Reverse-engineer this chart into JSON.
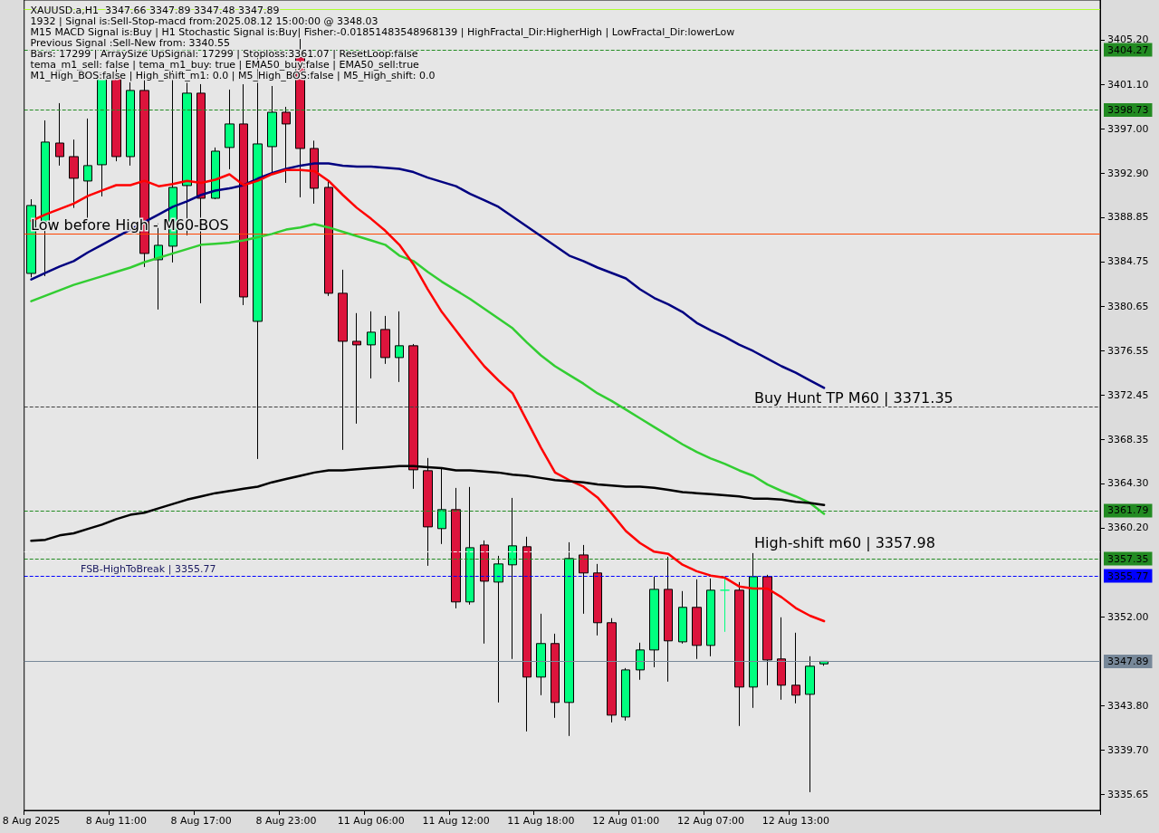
{
  "chart_data": {
    "type": "candlestick",
    "title": "XAUUSD.a,H1  3347.66 3347.89 3347.48 3347.89",
    "annotations": [
      "1932 | Signal is:Sell-Stop-macd from:2025.08.12 15:00:00 @ 3348.03",
      "M15 MACD Signal is:Buy | H1 Stochastic Signal is:Buy| Fisher:-0.01851483548968139 | HighFractal_Dir:HigherHigh | LowFractal_Dir:lowerLow",
      "Previous Signal :Sell-New from: 3340.55",
      "Bars: 17299 | ArraySize UpSignal: 17299 | Stoploss:3361.07 | ResetLoop:false",
      "tema_m1_sell: false | tema_m1_buy: true | EMA50_buy:false | EMA50_sell:true",
      "M1_High_BOS:false | High_shift_m1: 0.0 | M5_High_BOS:false | M5_High_shift: 0.0",
      {
        "text": "Low before High - M60-BOS",
        "y": 3387.33
      },
      {
        "text": "Buy Hunt TP M60 | 3371.35",
        "y": 3371.35
      },
      {
        "text": "High-shift m60 | 3357.98",
        "y": 3357.98
      },
      {
        "text": "FSB-HighToBreak | 3355.77",
        "y": 3355.77
      }
    ],
    "categories": [
      "8 Aug 2025",
      null,
      null,
      null,
      null,
      null,
      "8 Aug 11:00",
      null,
      null,
      null,
      null,
      null,
      "8 Aug 17:00",
      null,
      null,
      null,
      null,
      null,
      "8 Aug 23:00",
      null,
      null,
      null,
      null,
      null,
      "11 Aug 06:00",
      null,
      null,
      null,
      null,
      null,
      "11 Aug 12:00",
      null,
      null,
      null,
      null,
      null,
      "11 Aug 18:00",
      null,
      null,
      null,
      null,
      null,
      "12 Aug 01:00",
      null,
      null,
      null,
      null,
      null,
      "12 Aug 07:00",
      null,
      null,
      null,
      null,
      null,
      "12 Aug 13:00",
      null,
      null
    ],
    "ohlc": [
      [
        3383.66,
        3390.5,
        3383.3,
        3389.92
      ],
      [
        3388.42,
        3397.77,
        3383.41,
        3395.77
      ],
      [
        3395.68,
        3399.36,
        3393.6,
        3394.43
      ],
      [
        3394.43,
        3396.0,
        3389.7,
        3392.43
      ],
      [
        3392.18,
        3397.94,
        3388.67,
        3393.6
      ],
      [
        3393.68,
        3402.2,
        3390.76,
        3402.11
      ],
      [
        3402.11,
        3403.03,
        3394.0,
        3394.43
      ],
      [
        3394.43,
        3401.5,
        3393.6,
        3400.53
      ],
      [
        3400.53,
        3401.5,
        3384.25,
        3385.5
      ],
      [
        3384.92,
        3388.26,
        3380.33,
        3386.25
      ],
      [
        3386.17,
        3402.36,
        3384.67,
        3391.59
      ],
      [
        3391.76,
        3401.36,
        3387.17,
        3400.28
      ],
      [
        3400.28,
        3401.11,
        3380.91,
        3390.59
      ],
      [
        3390.59,
        3395.27,
        3390.5,
        3394.93
      ],
      [
        3395.27,
        3400.61,
        3393.26,
        3397.44
      ],
      [
        3397.44,
        3401.1,
        3380.74,
        3381.49
      ],
      [
        3379.24,
        3404.1,
        3366.55,
        3395.6
      ],
      [
        3395.35,
        3400.94,
        3392.76,
        3398.52
      ],
      [
        3398.52,
        3399.02,
        3392.01,
        3397.44
      ],
      [
        3403.61,
        3405.53,
        3390.68,
        3395.18
      ],
      [
        3395.18,
        3395.9,
        3390.09,
        3391.51
      ],
      [
        3391.59,
        3392.2,
        3381.58,
        3381.83
      ],
      [
        3381.83,
        3384.0,
        3367.39,
        3377.4
      ],
      [
        3377.4,
        3380.0,
        3369.81,
        3377.07
      ],
      [
        3377.07,
        3380.16,
        3373.98,
        3378.24
      ],
      [
        3378.49,
        3379.74,
        3375.32,
        3375.9
      ],
      [
        3375.9,
        3380.16,
        3373.65,
        3376.99
      ],
      [
        3376.99,
        3377.15,
        3363.8,
        3365.55
      ],
      [
        3365.47,
        3366.64,
        3356.7,
        3360.29
      ],
      [
        3360.13,
        3365.72,
        3358.71,
        3361.88
      ],
      [
        3361.88,
        3363.88,
        3352.78,
        3353.37
      ],
      [
        3353.37,
        3363.97,
        3353.12,
        3358.37
      ],
      [
        3358.62,
        3359.04,
        3349.53,
        3355.28
      ],
      [
        3355.2,
        3357.62,
        3344.1,
        3356.87
      ],
      [
        3356.79,
        3362.96,
        3348.11,
        3358.54
      ],
      [
        3358.46,
        3359.38,
        3341.43,
        3346.44
      ],
      [
        3346.44,
        3352.28,
        3344.77,
        3349.53
      ],
      [
        3349.53,
        3350.44,
        3342.68,
        3344.1
      ],
      [
        3344.1,
        3358.87,
        3341.01,
        3357.37
      ],
      [
        3357.7,
        3358.62,
        3352.28,
        3356.04
      ],
      [
        3356.04,
        3356.87,
        3350.28,
        3351.45
      ],
      [
        3351.45,
        3351.87,
        3342.26,
        3342.93
      ],
      [
        3342.76,
        3347.27,
        3342.43,
        3347.1
      ],
      [
        3347.1,
        3349.61,
        3346.19,
        3348.94
      ],
      [
        3348.94,
        3355.7,
        3347.35,
        3354.53
      ],
      [
        3354.53,
        3357.54,
        3346.02,
        3349.78
      ],
      [
        3349.69,
        3354.37,
        3349.53,
        3352.87
      ],
      [
        3352.87,
        3355.45,
        3348.11,
        3349.36
      ],
      [
        3349.36,
        3355.53,
        3348.36,
        3354.45
      ],
      [
        3354.45,
        3355.7,
        3350.61,
        3354.45
      ],
      [
        3354.45,
        3355.2,
        3341.93,
        3345.52
      ],
      [
        3345.52,
        3357.87,
        3343.6,
        3355.7
      ],
      [
        3355.7,
        3355.87,
        3345.69,
        3348.02
      ],
      [
        3348.11,
        3351.95,
        3344.35,
        3345.69
      ],
      [
        3345.69,
        3350.53,
        3344.02,
        3344.77
      ],
      [
        3344.85,
        3348.36,
        3335.83,
        3347.44
      ],
      [
        3347.66,
        3347.89,
        3347.48,
        3347.89
      ]
    ],
    "colors": [
      "#00ff7f",
      "#00ff7f",
      "#dc143c",
      "#dc143c",
      "#00ff7f",
      "#00ff7f",
      "#dc143c",
      "#00ff7f",
      "#dc143c",
      "#00ff7f",
      "#00ff7f",
      "#00ff7f",
      "#dc143c",
      "#00ff7f",
      "#00ff7f",
      "#dc143c",
      "#00ff7f",
      "#00ff7f",
      "#dc143c",
      "#dc143c",
      "#dc143c",
      "#dc143c",
      "#dc143c",
      "#dc143c",
      "#00ff7f",
      "#dc143c",
      "#00ff7f",
      "#dc143c",
      "#dc143c",
      "#00ff7f",
      "#dc143c",
      "#00ff7f",
      "#dc143c",
      "#00ff7f",
      "#00ff7f",
      "#dc143c",
      "#00ff7f",
      "#dc143c",
      "#00ff7f",
      "#dc143c",
      "#dc143c",
      "#dc143c",
      "#00ff7f",
      "#00ff7f",
      "#00ff7f",
      "#dc143c",
      "#00ff7f",
      "#dc143c",
      "#00ff7f",
      "#00ff7f",
      "#dc143c",
      "#00ff7f",
      "#dc143c",
      "#dc143c",
      "#dc143c",
      "#00ff7f",
      "#00ff7f"
    ],
    "series": [
      {
        "type": "line",
        "color": "#000080",
        "values": [
          3383.1,
          3383.7,
          3384.3,
          3384.8,
          3385.6,
          3386.3,
          3387.0,
          3387.7,
          3388.4,
          3389.1,
          3389.8,
          3390.3,
          3390.9,
          3391.3,
          3391.5,
          3391.8,
          3392.4,
          3392.9,
          3393.3,
          3393.6,
          3393.8,
          3393.8,
          3393.6,
          3393.5,
          3393.5,
          3393.4,
          3393.3,
          3393.0,
          3392.5,
          3392.1,
          3391.7,
          3391.0,
          3390.4,
          3389.8,
          3388.9,
          3388.0,
          3387.1,
          3386.2,
          3385.3,
          3384.8,
          3384.2,
          3383.7,
          3383.2,
          3382.2,
          3381.4,
          3380.8,
          3380.1,
          3379.1,
          3378.4,
          3377.8,
          3377.1,
          3376.5,
          3375.8,
          3375.1,
          3374.5,
          3373.8,
          3373.1
        ]
      },
      {
        "type": "line",
        "color": "#32cd32",
        "values": [
          3381.1,
          3381.6,
          3382.1,
          3382.6,
          3383.0,
          3383.4,
          3383.8,
          3384.2,
          3384.7,
          3385.1,
          3385.5,
          3385.9,
          3386.3,
          3386.4,
          3386.5,
          3386.7,
          3387.0,
          3387.3,
          3387.7,
          3387.9,
          3388.2,
          3387.9,
          3387.5,
          3387.1,
          3386.7,
          3386.3,
          3385.3,
          3384.8,
          3383.8,
          3382.9,
          3382.1,
          3381.3,
          3380.4,
          3379.5,
          3378.6,
          3377.3,
          3376.1,
          3375.1,
          3374.3,
          3373.5,
          3372.6,
          3371.9,
          3371.1,
          3370.3,
          3369.5,
          3368.7,
          3367.9,
          3367.2,
          3366.6,
          3366.1,
          3365.5,
          3365.0,
          3364.2,
          3363.6,
          3363.1,
          3362.5,
          3361.5
        ]
      },
      {
        "type": "line",
        "color": "#ff0000",
        "values": [
          3388.5,
          3389.1,
          3389.6,
          3390.1,
          3390.8,
          3391.3,
          3391.8,
          3391.8,
          3392.2,
          3391.7,
          3391.9,
          3392.2,
          3392.0,
          3392.3,
          3392.8,
          3391.8,
          3392.2,
          3392.8,
          3393.2,
          3393.2,
          3393.1,
          3392.2,
          3390.9,
          3389.7,
          3388.7,
          3387.6,
          3386.3,
          3384.5,
          3382.2,
          3380.1,
          3378.4,
          3376.7,
          3375.1,
          3373.8,
          3372.6,
          3370.1,
          3367.6,
          3365.3,
          3364.6,
          3364.0,
          3363.0,
          3361.5,
          3359.9,
          3358.8,
          3358.0,
          3357.8,
          3356.8,
          3356.2,
          3355.8,
          3355.6,
          3354.8,
          3354.6,
          3354.6,
          3353.8,
          3352.8,
          3352.1,
          3351.6
        ]
      },
      {
        "type": "line",
        "color": "#000000",
        "values": [
          3359.0,
          3359.1,
          3359.5,
          3359.7,
          3360.1,
          3360.5,
          3361.0,
          3361.4,
          3361.6,
          3362.0,
          3362.4,
          3362.8,
          3363.1,
          3363.4,
          3363.6,
          3363.8,
          3364.0,
          3364.4,
          3364.7,
          3365.0,
          3365.3,
          3365.5,
          3365.5,
          3365.6,
          3365.7,
          3365.8,
          3365.9,
          3365.9,
          3365.8,
          3365.7,
          3365.5,
          3365.5,
          3365.4,
          3365.3,
          3365.1,
          3365.0,
          3364.8,
          3364.6,
          3364.5,
          3364.4,
          3364.2,
          3364.1,
          3364.0,
          3364.0,
          3363.9,
          3363.7,
          3363.5,
          3363.4,
          3363.3,
          3363.2,
          3363.1,
          3362.9,
          3362.9,
          3362.8,
          3362.6,
          3362.5,
          3362.3
        ]
      }
    ],
    "ref_lines": [
      {
        "axis": "y",
        "value": 3404.27,
        "label": "3404.27",
        "color": "#228b22",
        "line_style": "dashed"
      },
      {
        "axis": "y",
        "value": 3398.73,
        "label": "3398.73",
        "color": "#228b22",
        "line_style": "dashed"
      },
      {
        "axis": "y",
        "value": 3361.79,
        "label": "3361.79",
        "color": "#228b22",
        "line_style": "dashed"
      },
      {
        "axis": "y",
        "value": 3357.35,
        "label": "3357.35",
        "color": "#228b22",
        "line_style": "dashed"
      },
      {
        "axis": "y",
        "value": 3355.77,
        "label": "3355.77",
        "color": "#0000ff",
        "line_style": "dashed"
      },
      {
        "axis": "y",
        "value": 3347.89,
        "label": "3347.89",
        "color": "#778899",
        "line_style": "solid"
      },
      {
        "axis": "y",
        "value": 3387.33,
        "color": "#ff4500",
        "line_style": "solid"
      },
      {
        "axis": "y",
        "value": 3371.35,
        "color": "#404040",
        "line_style": "dashed"
      },
      {
        "axis": "y",
        "value": 3357.98,
        "color": "#f4f4f4",
        "line_style": "dashed"
      },
      {
        "axis": "y",
        "value": 3408.04,
        "color": "#adff2f",
        "line_style": "solid"
      }
    ],
    "ylim": [
      3334.15,
      3408.87
    ],
    "yticks": [
      {
        "value": 3335.65,
        "label": "3335.65"
      },
      {
        "value": 3339.7,
        "label": "3339.70"
      },
      {
        "value": 3343.8,
        "label": "3343.80"
      },
      {
        "value": 3352.0,
        "label": "3352.00"
      },
      {
        "value": 3360.2,
        "label": "3360.20"
      },
      {
        "value": 3364.3,
        "label": "3364.30"
      },
      {
        "value": 3368.35,
        "label": "3368.35"
      },
      {
        "value": 3372.45,
        "label": "3372.45"
      },
      {
        "value": 3376.55,
        "label": "3376.55"
      },
      {
        "value": 3380.65,
        "label": "3380.65"
      },
      {
        "value": 3384.75,
        "label": "3384.75"
      },
      {
        "value": 3388.85,
        "label": "3388.85"
      },
      {
        "value": 3392.9,
        "label": "3392.90"
      },
      {
        "value": 3397.0,
        "label": "3397.00"
      },
      {
        "value": 3401.1,
        "label": "3401.10"
      },
      {
        "value": 3405.2,
        "label": "3405.20"
      }
    ],
    "grid": false
  }
}
